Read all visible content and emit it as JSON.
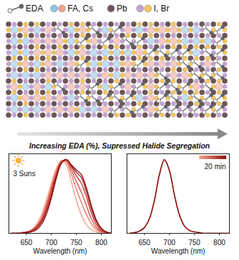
{
  "header": {
    "legend": [
      {
        "label": "EDA",
        "colors": [
          "#ffffff",
          "#5f6368"
        ]
      },
      {
        "label": "FA, Cs",
        "colors": [
          "#8ec3e6",
          "#f0a08f"
        ]
      },
      {
        "label": "Pb",
        "colors": [
          "#6d5656"
        ]
      },
      {
        "label": "I, Br",
        "colors": [
          "#c3a3d6",
          "#f3c85a"
        ]
      }
    ],
    "caption": "Increasing EDA (%), Supressed Halide Segregation"
  },
  "chart_data": [
    {
      "type": "line",
      "x": [
        620,
        630,
        640,
        650,
        660,
        670,
        680,
        690,
        700,
        710,
        720,
        730,
        740,
        750,
        760,
        770,
        780,
        790,
        800,
        810,
        820
      ],
      "series": [
        {
          "color": "#f4a08c",
          "values": [
            0,
            0,
            0.01,
            0.02,
            0.05,
            0.12,
            0.25,
            0.45,
            0.68,
            0.88,
            0.99,
            0.93,
            0.7,
            0.45,
            0.25,
            0.12,
            0.05,
            0.02,
            0.01,
            0,
            0
          ]
        },
        {
          "color": "#e8776a",
          "values": [
            0,
            0,
            0.01,
            0.02,
            0.04,
            0.1,
            0.21,
            0.4,
            0.63,
            0.85,
            0.98,
            0.97,
            0.8,
            0.6,
            0.42,
            0.26,
            0.13,
            0.05,
            0.02,
            0.01,
            0
          ]
        },
        {
          "color": "#d9534c",
          "values": [
            0,
            0,
            0.01,
            0.02,
            0.04,
            0.09,
            0.19,
            0.37,
            0.6,
            0.82,
            0.97,
            0.99,
            0.86,
            0.7,
            0.56,
            0.38,
            0.2,
            0.08,
            0.03,
            0.01,
            0
          ]
        },
        {
          "color": "#c23a36",
          "values": [
            0,
            0,
            0,
            0.01,
            0.03,
            0.08,
            0.17,
            0.33,
            0.56,
            0.8,
            0.96,
            1.0,
            0.9,
            0.78,
            0.68,
            0.5,
            0.28,
            0.12,
            0.04,
            0.01,
            0
          ]
        },
        {
          "color": "#a52424",
          "values": [
            0,
            0,
            0,
            0.01,
            0.03,
            0.07,
            0.15,
            0.3,
            0.52,
            0.78,
            0.96,
            1.0,
            0.92,
            0.83,
            0.76,
            0.57,
            0.34,
            0.16,
            0.06,
            0.02,
            0
          ]
        },
        {
          "color": "#8b1010",
          "values": [
            0,
            0,
            0,
            0.01,
            0.02,
            0.05,
            0.12,
            0.26,
            0.48,
            0.75,
            0.95,
            1.0,
            0.93,
            0.86,
            0.8,
            0.62,
            0.38,
            0.18,
            0.07,
            0.02,
            0
          ]
        }
      ],
      "xlim": [
        615,
        820
      ],
      "ylim": [
        0,
        1.08
      ],
      "xticks": [
        650,
        700,
        750,
        800
      ],
      "xlabel": "Wavelength (nm)",
      "tick_labels": "x",
      "annotation": "3 Suns"
    },
    {
      "type": "line",
      "x": [
        620,
        630,
        640,
        650,
        660,
        670,
        680,
        690,
        700,
        710,
        720,
        730,
        740,
        750,
        760,
        770,
        780,
        790,
        800,
        810,
        820
      ],
      "series": [
        {
          "color": "#c0392b",
          "values": [
            0,
            0.01,
            0.03,
            0.08,
            0.2,
            0.45,
            0.8,
            1.0,
            0.85,
            0.52,
            0.25,
            0.1,
            0.04,
            0.02,
            0.01,
            0,
            0,
            0,
            0,
            0,
            0
          ]
        },
        {
          "color": "#8b1010",
          "values": [
            0,
            0.01,
            0.03,
            0.08,
            0.2,
            0.45,
            0.8,
            1.0,
            0.85,
            0.52,
            0.25,
            0.1,
            0.04,
            0.02,
            0.01,
            0,
            0,
            0,
            0,
            0,
            0
          ]
        }
      ],
      "xlim": [
        615,
        820
      ],
      "ylim": [
        0,
        1.08
      ],
      "xticks": [
        650,
        700,
        750,
        800
      ],
      "xlabel": "Wavelength (nm)",
      "tick_labels": "x",
      "colorbar": {
        "label": "20 min",
        "colors": [
          "#f4a08c",
          "#8b1010"
        ]
      }
    }
  ]
}
